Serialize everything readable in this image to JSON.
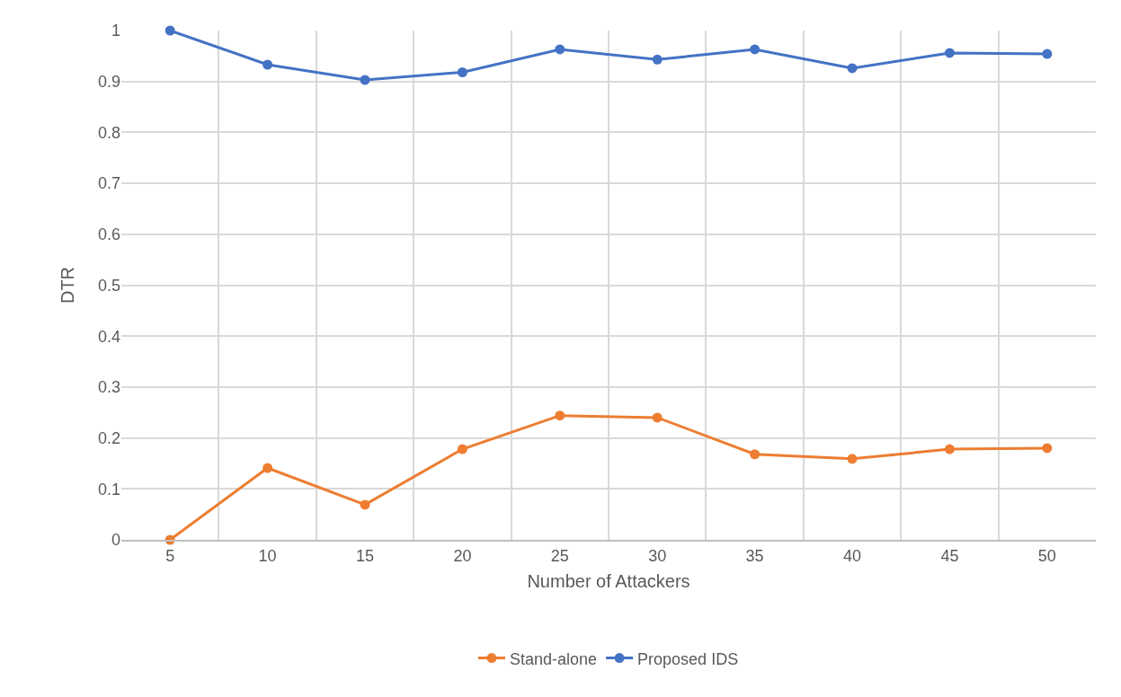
{
  "chart_data": {
    "type": "line",
    "xlabel": "Number of Attackers",
    "ylabel": "DTR",
    "categories": [
      "5",
      "10",
      "15",
      "20",
      "25",
      "30",
      "35",
      "40",
      "45",
      "50"
    ],
    "series": [
      {
        "name": "Stand-alone",
        "color": "#ed7d31",
        "values": [
          0,
          0.141,
          0.069,
          0.178,
          0.244,
          0.24,
          0.168,
          0.159,
          0.178,
          0.18
        ]
      },
      {
        "name": "Proposed IDS",
        "color": "#4472c4",
        "values": [
          1,
          0.933,
          0.903,
          0.918,
          0.963,
          0.943,
          0.963,
          0.926,
          0.956,
          0.954
        ]
      }
    ],
    "ylim": [
      0,
      1
    ],
    "yticks": [
      0,
      0.1,
      0.2,
      0.3,
      0.4,
      0.5,
      0.6,
      0.7,
      0.8,
      0.9,
      1
    ],
    "grid": true,
    "legend": "bottom",
    "marker": "circle",
    "line_style": "solid"
  }
}
